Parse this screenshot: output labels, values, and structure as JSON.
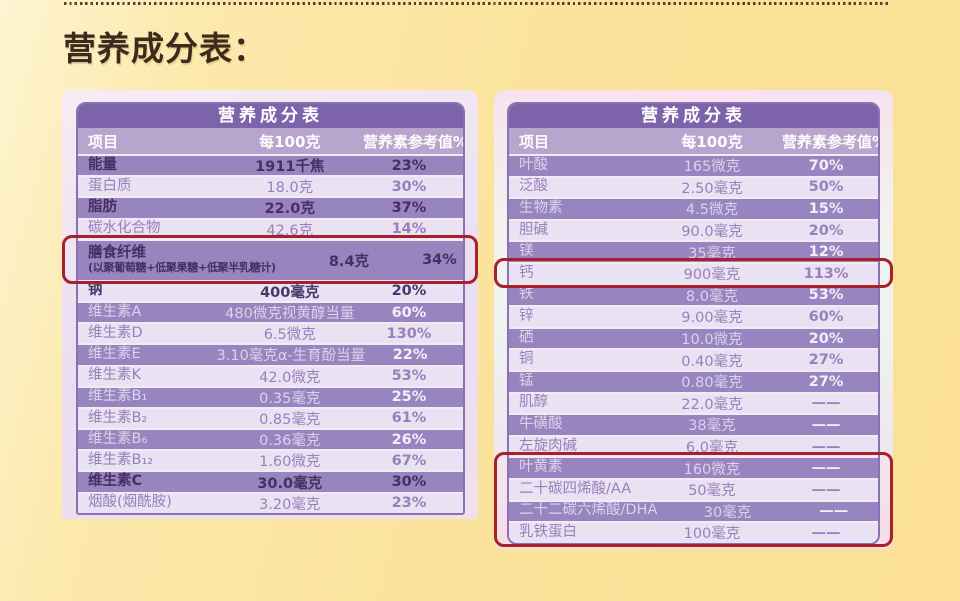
{
  "page_title": "营养成分表：",
  "colors": {
    "background_yellow": "#fbe29a",
    "title_text": "#3d2a1e",
    "table_header": "#7d63a9",
    "column_header_bg": "#b8a5cd",
    "band_row_bg": "#9884be",
    "light_row_bg": "#e9e2f2",
    "emphasis_text": "#443061",
    "highlight_border": "#a7202a"
  },
  "tables": [
    {
      "title": "营养成分表",
      "columns": {
        "item": "项目",
        "per100g": "每100克",
        "nrv": "营养素参考值%"
      },
      "rows": [
        {
          "item": "能量",
          "value": "1911千焦",
          "nrv": "23%",
          "em": true
        },
        {
          "item": "蛋白质",
          "value": "18.0克",
          "nrv": "30%"
        },
        {
          "item": "脂肪",
          "value": "22.0克",
          "nrv": "37%",
          "em": true
        },
        {
          "item": "碳水化合物",
          "value": "42.6克",
          "nrv": "14%"
        },
        {
          "item": "膳食纤维",
          "item_sub": "(以聚葡萄糖+低聚果糖+低聚半乳糖计)",
          "value": "8.4克",
          "nrv": "34%",
          "em": true,
          "tall": true,
          "highlight": true
        },
        {
          "item": "钠",
          "value": "400毫克",
          "nrv": "20%",
          "em": true
        },
        {
          "item": "维生素A",
          "value": "480微克视黄醇当量",
          "nrv": "60%"
        },
        {
          "item": "维生素D",
          "value": "6.5微克",
          "nrv": "130%"
        },
        {
          "item": "维生素E",
          "value": "3.10毫克α-生育酚当量",
          "nrv": "22%"
        },
        {
          "item": "维生素K",
          "value": "42.0微克",
          "nrv": "53%"
        },
        {
          "item": "维生素B₁",
          "value": "0.35毫克",
          "nrv": "25%"
        },
        {
          "item": "维生素B₂",
          "value": "0.85毫克",
          "nrv": "61%"
        },
        {
          "item": "维生素B₆",
          "value": "0.36毫克",
          "nrv": "26%"
        },
        {
          "item": "维生素B₁₂",
          "value": "1.60微克",
          "nrv": "67%"
        },
        {
          "item": "维生素C",
          "value": "30.0毫克",
          "nrv": "30%",
          "em": true
        },
        {
          "item": "烟酸(烟酰胺)",
          "value": "3.20毫克",
          "nrv": "23%"
        }
      ]
    },
    {
      "title": "营养成分表",
      "columns": {
        "item": "项目",
        "per100g": "每100克",
        "nrv": "营养素参考值%"
      },
      "rows": [
        {
          "item": "叶酸",
          "value": "165微克",
          "nrv": "70%"
        },
        {
          "item": "泛酸",
          "value": "2.50毫克",
          "nrv": "50%"
        },
        {
          "item": "生物素",
          "value": "4.5微克",
          "nrv": "15%"
        },
        {
          "item": "胆碱",
          "value": "90.0毫克",
          "nrv": "20%"
        },
        {
          "item": "镁",
          "value": "35毫克",
          "nrv": "12%"
        },
        {
          "item": "钙",
          "value": "900毫克",
          "nrv": "113%",
          "highlight": true
        },
        {
          "item": "铁",
          "value": "8.0毫克",
          "nrv": "53%"
        },
        {
          "item": "锌",
          "value": "9.00毫克",
          "nrv": "60%"
        },
        {
          "item": "硒",
          "value": "10.0微克",
          "nrv": "20%"
        },
        {
          "item": "铜",
          "value": "0.40毫克",
          "nrv": "27%"
        },
        {
          "item": "锰",
          "value": "0.80毫克",
          "nrv": "27%"
        },
        {
          "item": "肌醇",
          "value": "22.0毫克",
          "nrv": "——"
        },
        {
          "item": "牛磺酸",
          "value": "38毫克",
          "nrv": "——"
        },
        {
          "item": "左旋肉碱",
          "value": "6.0毫克",
          "nrv": "——"
        },
        {
          "item": "叶黄素",
          "value": "160微克",
          "nrv": "——",
          "highlight": true
        },
        {
          "item": "二十碳四烯酸/AA",
          "value": "50毫克",
          "nrv": "——",
          "highlight": true
        },
        {
          "item": "二十二碳六烯酸/DHA",
          "value": "30毫克",
          "nrv": "——",
          "highlight": true
        },
        {
          "item": "乳铁蛋白",
          "value": "100毫克",
          "nrv": "——",
          "highlight": true
        }
      ]
    }
  ]
}
